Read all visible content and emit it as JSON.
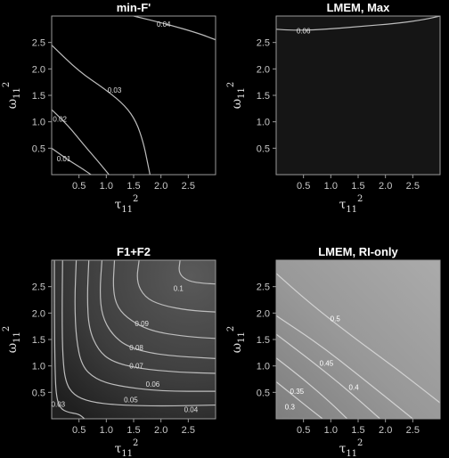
{
  "chart_data": [
    {
      "type": "heatmap",
      "title": "min-F'",
      "xlabel": "τ11²",
      "ylabel": "ω11²",
      "xlim": [
        0,
        3.0
      ],
      "ylim": [
        0,
        3.0
      ],
      "xticks": [
        "0.5",
        "1.0",
        "1.5",
        "2.0",
        "2.5"
      ],
      "yticks": [
        "0.5",
        "1.0",
        "1.5",
        "2.0",
        "2.5"
      ],
      "fill_color": "#000000",
      "contours": [
        {
          "level": "0.01",
          "points": [
            [
              0,
              0.5
            ],
            [
              0.3,
              0.28
            ],
            [
              0.55,
              0.12
            ],
            [
              0.72,
              0
            ]
          ],
          "label_at": [
            0.22,
            0.3
          ]
        },
        {
          "level": "0.02",
          "points": [
            [
              0,
              1.23
            ],
            [
              0.3,
              0.93
            ],
            [
              0.6,
              0.55
            ],
            [
              0.85,
              0.25
            ],
            [
              1.05,
              0
            ]
          ],
          "label_at": [
            0.15,
            1.05
          ]
        },
        {
          "level": "0.03",
          "points": [
            [
              0,
              2.45
            ],
            [
              0.5,
              1.95
            ],
            [
              1.0,
              1.6
            ],
            [
              1.35,
              1.3
            ],
            [
              1.55,
              1.0
            ],
            [
              1.68,
              0.6
            ],
            [
              1.75,
              0.25
            ],
            [
              1.8,
              0
            ]
          ],
          "label_at": [
            1.15,
            1.6
          ]
        },
        {
          "level": "0.04",
          "points": [
            [
              1.5,
              3.0
            ],
            [
              2.1,
              2.85
            ],
            [
              2.7,
              2.67
            ],
            [
              3.0,
              2.55
            ]
          ],
          "label_at": [
            2.05,
            2.85
          ]
        }
      ]
    },
    {
      "type": "heatmap",
      "title": "LMEM, Max",
      "xlabel": "τ11²",
      "ylabel": "ω11²",
      "xlim": [
        0,
        3.0
      ],
      "ylim": [
        0,
        3.0
      ],
      "xticks": [
        "0.5",
        "1.0",
        "1.5",
        "2.0",
        "2.5"
      ],
      "yticks": [
        "0.5",
        "1.0",
        "1.5",
        "2.0",
        "2.5"
      ],
      "fill_color": "#151515",
      "contours": [
        {
          "level": "0.06",
          "points": [
            [
              0,
              2.75
            ],
            [
              0.3,
              2.73
            ],
            [
              0.8,
              2.74
            ],
            [
              1.5,
              2.8
            ],
            [
              2.2,
              2.86
            ],
            [
              2.7,
              2.93
            ],
            [
              3.0,
              3.0
            ]
          ],
          "label_at": [
            0.5,
            2.72
          ]
        }
      ]
    },
    {
      "type": "heatmap",
      "title": "F1+F2",
      "xlabel": "τ11²",
      "ylabel": "ω11²",
      "xlim": [
        0,
        3.0
      ],
      "ylim": [
        0,
        3.0
      ],
      "xticks": [
        "0.5",
        "1.0",
        "1.5",
        "2.0",
        "2.5"
      ],
      "yticks": [
        "0.5",
        "1.0",
        "1.5",
        "2.0",
        "2.5"
      ],
      "fill_color": "#3c3c3c",
      "contours": [
        {
          "level": "0.03",
          "points": [
            [
              0.05,
              3.0
            ],
            [
              0.05,
              2.0
            ],
            [
              0.06,
              1.0
            ],
            [
              0.08,
              0.45
            ],
            [
              0.15,
              0.2
            ],
            [
              0.3,
              0.12
            ],
            [
              0.5,
              0.09
            ],
            [
              0.6,
              0
            ]
          ],
          "label_at": [
            0.12,
            0.28
          ]
        },
        {
          "level": "0.04",
          "points": [
            [
              0.2,
              3.0
            ],
            [
              0.19,
              2.0
            ],
            [
              0.2,
              1.2
            ],
            [
              0.25,
              0.7
            ],
            [
              0.4,
              0.45
            ],
            [
              0.7,
              0.32
            ],
            [
              1.2,
              0.26
            ],
            [
              2.0,
              0.24
            ],
            [
              3.0,
              0.26
            ]
          ],
          "label_at": [
            2.55,
            0.18
          ]
        },
        {
          "level": "0.05",
          "points": [
            [
              0.45,
              3.0
            ],
            [
              0.42,
              2.2
            ],
            [
              0.45,
              1.5
            ],
            [
              0.55,
              1.0
            ],
            [
              0.8,
              0.75
            ],
            [
              1.2,
              0.62
            ],
            [
              2.0,
              0.52
            ],
            [
              3.0,
              0.52
            ]
          ],
          "label_at": [
            1.45,
            0.36
          ]
        },
        {
          "level": "0.06",
          "points": [
            [
              0.68,
              3.0
            ],
            [
              0.65,
              2.3
            ],
            [
              0.68,
              1.7
            ],
            [
              0.85,
              1.3
            ],
            [
              1.1,
              1.08
            ],
            [
              1.6,
              0.95
            ],
            [
              2.3,
              0.88
            ],
            [
              3.0,
              0.86
            ]
          ],
          "label_at": [
            1.85,
            0.66
          ]
        },
        {
          "level": "0.07",
          "points": [
            [
              0.92,
              3.0
            ],
            [
              0.88,
              2.4
            ],
            [
              0.92,
              1.95
            ],
            [
              1.1,
              1.6
            ],
            [
              1.4,
              1.35
            ],
            [
              2.0,
              1.2
            ],
            [
              3.0,
              1.14
            ]
          ],
          "label_at": [
            1.55,
            1.0
          ]
        },
        {
          "level": "0.08",
          "points": [
            [
              1.15,
              3.0
            ],
            [
              1.12,
              2.45
            ],
            [
              1.2,
              2.1
            ],
            [
              1.45,
              1.85
            ],
            [
              1.85,
              1.65
            ],
            [
              2.5,
              1.55
            ],
            [
              3.0,
              1.52
            ]
          ],
          "label_at": [
            1.55,
            1.35
          ]
        },
        {
          "level": "0.09",
          "points": [
            [
              1.6,
              3.0
            ],
            [
              1.55,
              2.6
            ],
            [
              1.7,
              2.3
            ],
            [
              2.0,
              2.15
            ],
            [
              2.5,
              2.05
            ],
            [
              3.0,
              2.02
            ]
          ],
          "label_at": [
            1.65,
            1.8
          ]
        },
        {
          "level": "0.1",
          "points": [
            [
              2.35,
              3.0
            ],
            [
              2.32,
              2.75
            ],
            [
              2.5,
              2.6
            ],
            [
              2.8,
              2.56
            ],
            [
              3.0,
              2.55
            ]
          ],
          "label_at": [
            2.32,
            2.47
          ]
        }
      ]
    },
    {
      "type": "heatmap",
      "title": "LMEM, RI-only",
      "xlabel": "τ11²",
      "ylabel": "ω11²",
      "xlim": [
        0,
        3.0
      ],
      "ylim": [
        0,
        3.0
      ],
      "xticks": [
        "0.5",
        "1.0",
        "1.5",
        "2.0",
        "2.5"
      ],
      "yticks": [
        "0.5",
        "1.0",
        "1.5",
        "2.0",
        "2.5"
      ],
      "fill_color": "#9c9c9c",
      "contours": [
        {
          "level": "0.3",
          "points": [
            [
              0,
              0.7
            ],
            [
              0.3,
              0.45
            ],
            [
              0.6,
              0.2
            ],
            [
              0.85,
              0
            ]
          ],
          "label_at": [
            0.25,
            0.23
          ]
        },
        {
          "level": "0.35",
          "points": [
            [
              0,
              1.15
            ],
            [
              0.5,
              0.75
            ],
            [
              1.0,
              0.3
            ],
            [
              1.3,
              0
            ]
          ],
          "label_at": [
            0.38,
            0.52
          ]
        },
        {
          "level": "0.4",
          "points": [
            [
              0,
              1.6
            ],
            [
              0.7,
              1.05
            ],
            [
              1.3,
              0.55
            ],
            [
              1.9,
              0
            ]
          ],
          "label_at": [
            1.42,
            0.6
          ]
        },
        {
          "level": "0.45",
          "points": [
            [
              0,
              1.95
            ],
            [
              0.8,
              1.4
            ],
            [
              1.6,
              0.75
            ],
            [
              2.5,
              0
            ]
          ],
          "label_at": [
            0.92,
            1.05
          ]
        },
        {
          "level": "0.5",
          "points": [
            [
              0,
              2.75
            ],
            [
              0.6,
              2.2
            ],
            [
              1.4,
              1.55
            ],
            [
              2.2,
              0.95
            ],
            [
              3.0,
              0.3
            ]
          ],
          "label_at": [
            1.08,
            1.9
          ]
        }
      ]
    }
  ]
}
